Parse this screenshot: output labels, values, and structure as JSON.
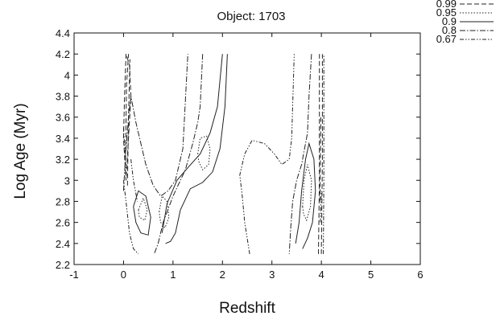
{
  "chart_data": {
    "type": "contour",
    "title": "Object: 1703",
    "xlabel": "Redshift",
    "ylabel": "Log Age (Myr)",
    "xlim": [
      -1,
      6
    ],
    "ylim": [
      2.2,
      4.4
    ],
    "xticks": [
      "-1",
      "0",
      "1",
      "2",
      "3",
      "4",
      "5",
      "6"
    ],
    "yticks": [
      "2.2",
      "2.4",
      "2.6",
      "2.8",
      "3",
      "3.2",
      "3.4",
      "3.6",
      "3.8",
      "4",
      "4.2",
      "4.4"
    ],
    "grid": false,
    "legend_position": "top-right outside",
    "levels": [
      {
        "label": "0.99",
        "dash": "6 3"
      },
      {
        "label": "0.95",
        "dash": "1.5 2"
      },
      {
        "label": "0.9",
        "dash": ""
      },
      {
        "label": "0.8",
        "dash": "7 2 1.5 2"
      },
      {
        "label": "0.67",
        "dash": "5 2 1.5 2 1.5 2"
      }
    ],
    "contours": [
      {
        "level": "0.8",
        "points": [
          [
            0.0,
            2.9
          ],
          [
            0.05,
            3.3
          ],
          [
            0.1,
            3.6
          ],
          [
            0.15,
            3.8
          ],
          [
            0.25,
            3.55
          ],
          [
            0.45,
            3.15
          ],
          [
            0.6,
            2.95
          ],
          [
            0.75,
            2.85
          ],
          [
            0.9,
            2.9
          ],
          [
            1.05,
            3.0
          ],
          [
            1.2,
            3.3
          ],
          [
            1.3,
            4.2
          ]
        ]
      },
      {
        "level": "0.8",
        "points": [
          [
            1.6,
            4.2
          ],
          [
            1.55,
            3.7
          ],
          [
            1.5,
            3.55
          ],
          [
            1.4,
            3.35
          ],
          [
            1.25,
            3.1
          ],
          [
            1.0,
            2.85
          ],
          [
            0.8,
            2.6
          ],
          [
            0.7,
            2.4
          ],
          [
            0.62,
            2.3
          ]
        ]
      },
      {
        "level": "0.9",
        "points": [
          [
            0.2,
            2.75
          ],
          [
            0.3,
            2.9
          ],
          [
            0.45,
            2.85
          ],
          [
            0.55,
            2.65
          ],
          [
            0.5,
            2.48
          ],
          [
            0.35,
            2.5
          ],
          [
            0.25,
            2.6
          ],
          [
            0.2,
            2.75
          ]
        ]
      },
      {
        "level": "0.9",
        "points": [
          [
            0.78,
            2.5
          ],
          [
            0.88,
            2.78
          ],
          [
            1.08,
            3.0
          ],
          [
            1.3,
            3.12
          ],
          [
            1.55,
            3.25
          ],
          [
            1.75,
            3.45
          ],
          [
            1.9,
            3.7
          ],
          [
            2.0,
            4.2
          ]
        ]
      },
      {
        "level": "0.9",
        "points": [
          [
            2.1,
            4.2
          ],
          [
            2.05,
            3.7
          ],
          [
            1.95,
            3.3
          ],
          [
            1.8,
            3.08
          ],
          [
            1.6,
            2.98
          ],
          [
            1.35,
            2.92
          ],
          [
            1.15,
            2.72
          ],
          [
            1.05,
            2.5
          ],
          [
            0.95,
            2.42
          ],
          [
            0.85,
            2.4
          ]
        ]
      },
      {
        "level": "0.95",
        "points": [
          [
            0.3,
            2.72
          ],
          [
            0.4,
            2.83
          ],
          [
            0.48,
            2.72
          ],
          [
            0.43,
            2.62
          ],
          [
            0.32,
            2.65
          ],
          [
            0.3,
            2.72
          ]
        ]
      },
      {
        "level": "0.95",
        "points": [
          [
            0.72,
            2.7
          ],
          [
            0.78,
            2.85
          ],
          [
            0.88,
            2.8
          ],
          [
            0.92,
            2.65
          ],
          [
            0.84,
            2.55
          ],
          [
            0.75,
            2.6
          ],
          [
            0.72,
            2.7
          ]
        ]
      },
      {
        "level": "0.95",
        "points": [
          [
            1.5,
            3.25
          ],
          [
            1.55,
            3.4
          ],
          [
            1.68,
            3.42
          ],
          [
            1.75,
            3.3
          ],
          [
            1.72,
            3.15
          ],
          [
            1.6,
            3.1
          ],
          [
            1.52,
            3.18
          ],
          [
            1.5,
            3.25
          ]
        ]
      },
      {
        "level": "0.99",
        "points": [
          [
            0.0,
            3.4
          ],
          [
            0.02,
            3.8
          ],
          [
            0.05,
            4.2
          ],
          [
            0.12,
            4.1
          ],
          [
            0.15,
            3.8
          ],
          [
            0.1,
            3.4
          ],
          [
            0.05,
            3.0
          ],
          [
            0.0,
            3.4
          ]
        ]
      },
      {
        "level": "0.99",
        "points": [
          [
            0.04,
            3.2
          ],
          [
            0.06,
            3.9
          ],
          [
            0.1,
            4.2
          ]
        ]
      },
      {
        "level": "0.99",
        "points": [
          [
            0.08,
            2.95
          ],
          [
            0.1,
            3.6
          ],
          [
            0.13,
            4.15
          ]
        ]
      },
      {
        "level": "0.67",
        "points": [
          [
            0.0,
            3.0
          ],
          [
            0.05,
            2.8
          ],
          [
            0.12,
            2.5
          ],
          [
            0.2,
            2.35
          ],
          [
            0.3,
            2.3
          ]
        ]
      },
      {
        "level": "0.67",
        "points": [
          [
            0.15,
            3.2
          ],
          [
            0.2,
            3.0
          ],
          [
            0.28,
            2.8
          ]
        ]
      },
      {
        "level": "0.67",
        "points": [
          [
            0.0,
            3.5
          ],
          [
            0.05,
            3.1
          ]
        ]
      },
      {
        "level": "0.67",
        "points": [
          [
            2.55,
            2.3
          ],
          [
            2.45,
            2.6
          ],
          [
            2.4,
            2.85
          ],
          [
            2.35,
            3.05
          ],
          [
            2.45,
            3.25
          ],
          [
            2.6,
            3.38
          ],
          [
            2.85,
            3.35
          ],
          [
            3.05,
            3.25
          ],
          [
            3.2,
            3.15
          ],
          [
            3.35,
            3.2
          ],
          [
            3.4,
            3.4
          ],
          [
            3.45,
            4.2
          ]
        ]
      },
      {
        "level": "0.8",
        "points": [
          [
            3.8,
            4.2
          ],
          [
            3.75,
            3.8
          ],
          [
            3.72,
            3.45
          ],
          [
            3.6,
            3.15
          ],
          [
            3.5,
            3.0
          ],
          [
            3.42,
            2.8
          ],
          [
            3.38,
            2.55
          ],
          [
            3.35,
            2.3
          ]
        ]
      },
      {
        "level": "0.9",
        "points": [
          [
            3.48,
            2.4
          ],
          [
            3.55,
            2.6
          ],
          [
            3.6,
            2.9
          ],
          [
            3.68,
            3.2
          ],
          [
            3.75,
            3.35
          ],
          [
            3.85,
            3.2
          ],
          [
            3.88,
            2.9
          ],
          [
            3.82,
            2.6
          ],
          [
            3.72,
            2.45
          ],
          [
            3.62,
            2.35
          ]
        ]
      },
      {
        "level": "0.95",
        "points": [
          [
            3.62,
            2.75
          ],
          [
            3.65,
            3.0
          ],
          [
            3.72,
            3.15
          ],
          [
            3.8,
            3.0
          ],
          [
            3.78,
            2.75
          ],
          [
            3.7,
            2.62
          ],
          [
            3.64,
            2.68
          ],
          [
            3.62,
            2.75
          ]
        ]
      },
      {
        "level": "0.99",
        "points": [
          [
            3.94,
            2.3
          ],
          [
            3.96,
            3.0
          ],
          [
            3.96,
            4.2
          ]
        ]
      },
      {
        "level": "0.99",
        "points": [
          [
            4.0,
            2.3
          ],
          [
            4.02,
            3.2
          ],
          [
            4.02,
            4.2
          ]
        ]
      },
      {
        "level": "0.99",
        "points": [
          [
            3.97,
            2.8
          ],
          [
            3.99,
            3.6
          ]
        ]
      },
      {
        "level": "0.67",
        "points": [
          [
            4.04,
            2.3
          ],
          [
            4.05,
            3.0
          ],
          [
            4.05,
            4.2
          ]
        ]
      },
      {
        "level": "0.67",
        "points": [
          [
            3.98,
            2.6
          ],
          [
            4.0,
            2.9
          ]
        ]
      }
    ]
  }
}
